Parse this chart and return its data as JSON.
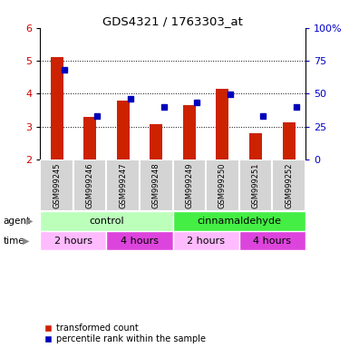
{
  "title": "GDS4321 / 1763303_at",
  "samples": [
    "GSM999245",
    "GSM999246",
    "GSM999247",
    "GSM999248",
    "GSM999249",
    "GSM999250",
    "GSM999251",
    "GSM999252"
  ],
  "red_values": [
    5.12,
    3.28,
    3.78,
    3.08,
    3.65,
    4.15,
    2.8,
    3.12
  ],
  "blue_values": [
    4.72,
    3.32,
    3.83,
    3.6,
    3.73,
    3.97,
    3.33,
    3.6
  ],
  "ylim": [
    2.0,
    6.0
  ],
  "yticks_left": [
    2,
    3,
    4,
    5,
    6
  ],
  "ylabel_left_color": "#cc0000",
  "ylabel_right_color": "#0000cc",
  "bar_color": "#cc2200",
  "dot_color": "#0000bb",
  "agent_groups": [
    {
      "label": "control",
      "color": "#bbffbb",
      "start": 0,
      "end": 4
    },
    {
      "label": "cinnamaldehyde",
      "color": "#44ee44",
      "start": 4,
      "end": 8
    }
  ],
  "time_groups": [
    {
      "label": "2 hours",
      "color": "#ffbbff",
      "start": 0,
      "end": 2
    },
    {
      "label": "4 hours",
      "color": "#dd44dd",
      "start": 2,
      "end": 4
    },
    {
      "label": "2 hours",
      "color": "#ffbbff",
      "start": 4,
      "end": 6
    },
    {
      "label": "4 hours",
      "color": "#dd44dd",
      "start": 6,
      "end": 8
    }
  ],
  "legend_red": "transformed count",
  "legend_blue": "percentile rank within the sample",
  "bar_width": 0.38,
  "dot_size": 35,
  "grid_lines": [
    3,
    4,
    5
  ],
  "right_tick_labels": [
    "0",
    "25",
    "50",
    "75",
    "100%"
  ],
  "right_tick_positions": [
    2,
    3,
    4,
    5,
    6
  ]
}
